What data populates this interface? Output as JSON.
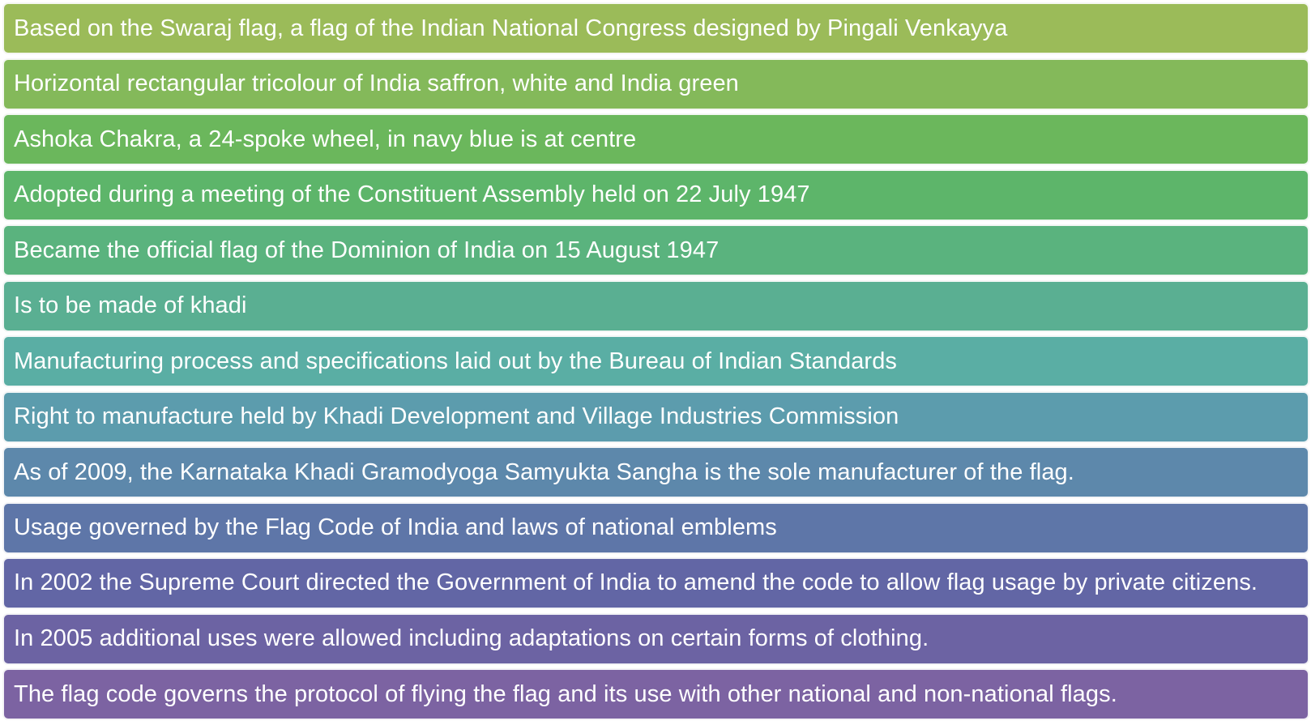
{
  "items": [
    {
      "text": "Based on the Swaraj flag, a flag of the Indian National Congress designed by Pingali Venkayya",
      "color": "#9bbb59"
    },
    {
      "text": "Horizontal rectangular tricolour of India saffron, white and India green",
      "color": "#84b95a"
    },
    {
      "text": "Ashoka Chakra, a 24-spoke wheel, in navy blue is at centre",
      "color": "#6bb75c"
    },
    {
      "text": "Adopted during a meeting of the Constituent Assembly held on 22 July 1947",
      "color": "#5db56a"
    },
    {
      "text": "Became the official flag of the Dominion of India on 15 August 1947",
      "color": "#5ab37e"
    },
    {
      "text": "Is to be made of khadi",
      "color": "#5aaf92"
    },
    {
      "text": "Manufacturing process and specifications laid out by the Bureau of Indian Standards",
      "color": "#5aaea4"
    },
    {
      "text": "Right to manufacture held by Khadi Development and Village Industries Commission",
      "color": "#5c9cad"
    },
    {
      "text": "As of 2009, the Karnataka Khadi Gramodyoga Samyukta Sangha is the sole manufacturer of the flag.",
      "color": "#5d88ab"
    },
    {
      "text": "Usage governed by the Flag Code of India and laws of national emblems",
      "color": "#5e76a8"
    },
    {
      "text": "In 2002 the Supreme Court directed the Government of India to amend the code to allow flag usage by private citizens.",
      "color": "#6266a5"
    },
    {
      "text": "In 2005 additional uses were allowed including adaptations on certain forms of clothing.",
      "color": "#6c63a3"
    },
    {
      "text": "The flag code governs the protocol of flying the flag and its use with other national and non-national flags.",
      "color": "#7c63a2"
    }
  ]
}
